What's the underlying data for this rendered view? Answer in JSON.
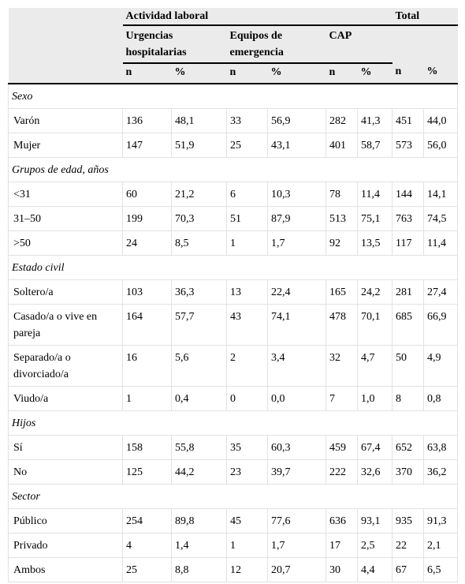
{
  "table": {
    "header": {
      "group": "Actividad laboral",
      "total": "Total",
      "subgroups": [
        "Urgencias hospitalarias",
        "Equipos de emergencia",
        "CAP"
      ],
      "columns": [
        "n",
        "%",
        "n",
        "%",
        "n",
        "%",
        "n",
        "%"
      ]
    },
    "sections": [
      {
        "title": "Sexo",
        "rows": [
          [
            "Varón",
            "136",
            "48,1",
            "33",
            "56,9",
            "282",
            "41,3",
            "451",
            "44,0"
          ],
          [
            "Mujer",
            "147",
            "51,9",
            "25",
            "43,1",
            "401",
            "58,7",
            "573",
            "56,0"
          ]
        ]
      },
      {
        "title": "Grupos de edad, años",
        "rows": [
          [
            "<31",
            "60",
            "21,2",
            "6",
            "10,3",
            "78",
            "11,4",
            "144",
            "14,1"
          ],
          [
            "31–50",
            "199",
            "70,3",
            "51",
            "87,9",
            "513",
            "75,1",
            "763",
            "74,5"
          ],
          [
            ">50",
            "24",
            "8,5",
            "1",
            "1,7",
            "92",
            "13,5",
            "117",
            "11,4"
          ]
        ]
      },
      {
        "title": "Estado civil",
        "rows": [
          [
            "Soltero/a",
            "103",
            "36,3",
            "13",
            "22,4",
            "165",
            "24,2",
            "281",
            "27,4"
          ],
          [
            "Casado/a o vive en pareja",
            "164",
            "57,7",
            "43",
            "74,1",
            "478",
            "70,1",
            "685",
            "66,9"
          ],
          [
            "Separado/a o divorciado/a",
            "16",
            "5,6",
            "2",
            "3,4",
            "32",
            "4,7",
            "50",
            "4,9"
          ],
          [
            "Viudo/a",
            "1",
            "0,4",
            "0",
            "0,0",
            "7",
            "1,0",
            "8",
            "0,8"
          ]
        ]
      },
      {
        "title": "Hijos",
        "rows": [
          [
            "Sí",
            "158",
            "55,8",
            "35",
            "60,3",
            "459",
            "67,4",
            "652",
            "63,8"
          ],
          [
            "No",
            "125",
            "44,2",
            "23",
            "39,7",
            "222",
            "32,6",
            "370",
            "36,2"
          ]
        ]
      },
      {
        "title": "Sector",
        "rows": [
          [
            "Público",
            "254",
            "89,8",
            "45",
            "77,6",
            "636",
            "93,1",
            "935",
            "91,3"
          ],
          [
            "Privado",
            "4",
            "1,4",
            "1",
            "1,7",
            "17",
            "2,5",
            "22",
            "2,1"
          ],
          [
            "Ambos",
            "25",
            "8,8",
            "12",
            "20,7",
            "30",
            "4,4",
            "67",
            "6,5"
          ]
        ]
      }
    ]
  }
}
